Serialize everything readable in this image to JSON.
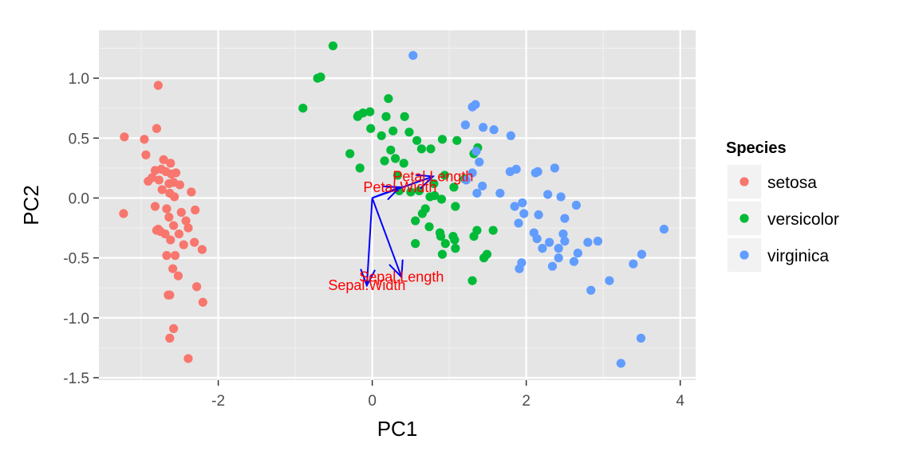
{
  "chart_data": {
    "type": "scatter",
    "xlabel": "PC1",
    "ylabel": "PC2",
    "xlim": [
      -3.55,
      4.2
    ],
    "ylim": [
      -1.52,
      1.4
    ],
    "x_ticks": [
      -2,
      0,
      2,
      4
    ],
    "x_tick_labels": [
      "-2",
      "0",
      "2",
      "4"
    ],
    "y_ticks": [
      -1.5,
      -1.0,
      -0.5,
      0.0,
      0.5,
      1.0
    ],
    "y_tick_labels": [
      "-1.5",
      "-1.0",
      "-0.5",
      "0.0",
      "0.5",
      "1.0"
    ],
    "grid": true,
    "legend": {
      "title": "Species",
      "placement": "right",
      "entries": [
        {
          "label": "setosa",
          "color": "#f8766d"
        },
        {
          "label": "versicolor",
          "color": "#00ba38"
        },
        {
          "label": "virginica",
          "color": "#619cff"
        }
      ]
    },
    "series": [
      {
        "name": "setosa",
        "color": "#f8766d",
        "points": [
          [
            -2.78,
            0.94
          ],
          [
            -3.22,
            0.51
          ],
          [
            -2.8,
            0.58
          ],
          [
            -2.96,
            0.49
          ],
          [
            -2.94,
            0.36
          ],
          [
            -2.71,
            0.32
          ],
          [
            -2.62,
            0.29
          ],
          [
            -2.82,
            0.23
          ],
          [
            -2.74,
            0.24
          ],
          [
            -2.68,
            0.22
          ],
          [
            -2.55,
            0.21
          ],
          [
            -2.61,
            0.2
          ],
          [
            -2.86,
            0.17
          ],
          [
            -2.77,
            0.15
          ],
          [
            -2.58,
            0.13
          ],
          [
            -2.64,
            0.12
          ],
          [
            -2.91,
            0.14
          ],
          [
            -2.5,
            0.11
          ],
          [
            -2.73,
            0.07
          ],
          [
            -2.63,
            0.04
          ],
          [
            -2.35,
            0.05
          ],
          [
            -2.57,
            0.01
          ],
          [
            -2.82,
            -0.07
          ],
          [
            -2.67,
            -0.09
          ],
          [
            -2.48,
            -0.12
          ],
          [
            -2.64,
            -0.16
          ],
          [
            -2.3,
            -0.1
          ],
          [
            -3.23,
            -0.13
          ],
          [
            -2.42,
            -0.19
          ],
          [
            -2.58,
            -0.23
          ],
          [
            -2.39,
            -0.25
          ],
          [
            -2.78,
            -0.26
          ],
          [
            -2.8,
            -0.27
          ],
          [
            -2.75,
            -0.28
          ],
          [
            -2.69,
            -0.3
          ],
          [
            -2.51,
            -0.3
          ],
          [
            -2.62,
            -0.35
          ],
          [
            -2.31,
            -0.37
          ],
          [
            -2.45,
            -0.39
          ],
          [
            -2.21,
            -0.43
          ],
          [
            -2.56,
            -0.48
          ],
          [
            -2.67,
            -0.48
          ],
          [
            -2.59,
            -0.59
          ],
          [
            -2.52,
            -0.65
          ],
          [
            -2.28,
            -0.74
          ],
          [
            -2.65,
            -0.81
          ],
          [
            -2.63,
            -0.81
          ],
          [
            -2.2,
            -0.87
          ],
          [
            -2.58,
            -1.09
          ],
          [
            -2.63,
            -1.17
          ],
          [
            -2.39,
            -1.34
          ]
        ]
      },
      {
        "name": "versicolor",
        "color": "#00ba38",
        "points": [
          [
            -0.51,
            1.27
          ],
          [
            -0.67,
            1.01
          ],
          [
            -0.71,
            1.0
          ],
          [
            -0.9,
            0.75
          ],
          [
            -0.18,
            0.69
          ],
          [
            -0.12,
            0.71
          ],
          [
            -0.03,
            0.72
          ],
          [
            -0.19,
            0.68
          ],
          [
            0.21,
            0.83
          ],
          [
            0.18,
            0.68
          ],
          [
            0.42,
            0.68
          ],
          [
            0.48,
            0.55
          ],
          [
            -0.02,
            0.58
          ],
          [
            0.27,
            0.56
          ],
          [
            0.12,
            0.52
          ],
          [
            0.58,
            0.48
          ],
          [
            0.64,
            0.41
          ],
          [
            0.76,
            0.41
          ],
          [
            0.91,
            0.49
          ],
          [
            1.1,
            0.48
          ],
          [
            1.37,
            0.42
          ],
          [
            1.32,
            0.37
          ],
          [
            0.24,
            0.4
          ],
          [
            -0.29,
            0.37
          ],
          [
            0.3,
            0.33
          ],
          [
            0.16,
            0.31
          ],
          [
            0.41,
            0.29
          ],
          [
            -0.16,
            0.25
          ],
          [
            0.33,
            0.19
          ],
          [
            0.94,
            0.19
          ],
          [
            0.8,
            0.12
          ],
          [
            1.2,
            0.16
          ],
          [
            1.06,
            0.09
          ],
          [
            0.35,
            0.06
          ],
          [
            0.5,
            0.05
          ],
          [
            0.61,
            0.06
          ],
          [
            0.81,
            0.02
          ],
          [
            0.75,
            0.01
          ],
          [
            0.9,
            -0.01
          ],
          [
            0.69,
            -0.09
          ],
          [
            0.65,
            -0.13
          ],
          [
            1.08,
            -0.07
          ],
          [
            0.56,
            -0.19
          ],
          [
            0.74,
            -0.24
          ],
          [
            0.88,
            -0.29
          ],
          [
            1.05,
            -0.32
          ],
          [
            1.32,
            -0.32
          ],
          [
            1.57,
            -0.27
          ],
          [
            1.36,
            -0.27
          ],
          [
            0.89,
            -0.32
          ],
          [
            0.91,
            -0.47
          ],
          [
            1.07,
            -0.35
          ],
          [
            0.95,
            -0.38
          ],
          [
            1.49,
            -0.47
          ],
          [
            1.45,
            -0.5
          ],
          [
            1.3,
            -0.69
          ],
          [
            0.56,
            -0.38
          ],
          [
            1.08,
            -0.42
          ]
        ]
      },
      {
        "name": "virginica",
        "color": "#619cff",
        "points": [
          [
            0.53,
            1.19
          ],
          [
            1.34,
            0.78
          ],
          [
            1.3,
            0.76
          ],
          [
            1.21,
            0.61
          ],
          [
            1.44,
            0.59
          ],
          [
            1.58,
            0.57
          ],
          [
            1.8,
            0.52
          ],
          [
            1.35,
            0.39
          ],
          [
            1.39,
            0.3
          ],
          [
            1.87,
            0.24
          ],
          [
            1.79,
            0.22
          ],
          [
            2.15,
            0.22
          ],
          [
            2.12,
            0.21
          ],
          [
            2.37,
            0.25
          ],
          [
            1.3,
            0.21
          ],
          [
            1.22,
            0.15
          ],
          [
            1.43,
            0.1
          ],
          [
            1.36,
            0.04
          ],
          [
            1.66,
            0.04
          ],
          [
            2.28,
            0.03
          ],
          [
            2.45,
            0.01
          ],
          [
            1.95,
            -0.04
          ],
          [
            1.97,
            -0.13
          ],
          [
            2.65,
            -0.06
          ],
          [
            1.85,
            -0.07
          ],
          [
            2.16,
            -0.14
          ],
          [
            1.9,
            -0.21
          ],
          [
            2.5,
            -0.17
          ],
          [
            2.1,
            -0.29
          ],
          [
            2.48,
            -0.3
          ],
          [
            2.14,
            -0.34
          ],
          [
            2.3,
            -0.37
          ],
          [
            2.42,
            -0.42
          ],
          [
            2.21,
            -0.42
          ],
          [
            2.8,
            -0.37
          ],
          [
            2.5,
            -0.36
          ],
          [
            2.93,
            -0.36
          ],
          [
            3.79,
            -0.26
          ],
          [
            1.94,
            -0.54
          ],
          [
            2.67,
            -0.46
          ],
          [
            2.42,
            -0.5
          ],
          [
            2.62,
            -0.53
          ],
          [
            2.34,
            -0.57
          ],
          [
            1.91,
            -0.59
          ],
          [
            3.5,
            -0.47
          ],
          [
            3.39,
            -0.55
          ],
          [
            3.08,
            -0.69
          ],
          [
            2.84,
            -0.77
          ],
          [
            3.49,
            -1.17
          ],
          [
            3.23,
            -1.38
          ]
        ]
      }
    ],
    "loadings": [
      {
        "label": "Petal.Length",
        "x": 0.79,
        "y": 0.18
      },
      {
        "label": "Petal.Width",
        "x": 0.36,
        "y": 0.09
      },
      {
        "label": "Sepal.Length",
        "x": 0.38,
        "y": -0.66
      },
      {
        "label": "Sepal.Width",
        "x": -0.07,
        "y": -0.73
      }
    ],
    "loading_color": "#0000ff",
    "loading_label_color": "#ff0000"
  }
}
